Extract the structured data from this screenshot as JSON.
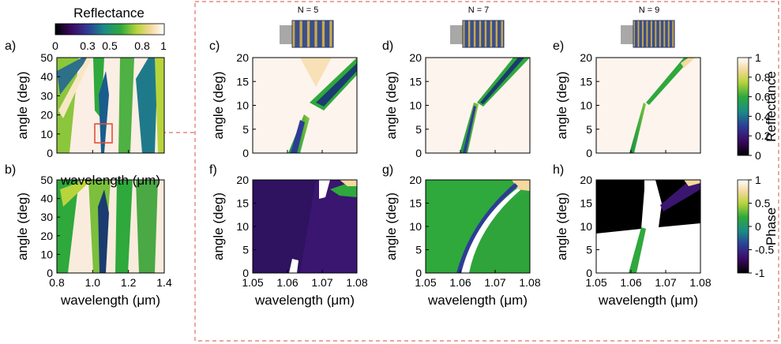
{
  "figure": {
    "colorbar_top": {
      "title": "Reflectance",
      "ticks": [
        "0",
        "0.3",
        "0.5",
        "0.8",
        "1"
      ],
      "tick_values": [
        0,
        0.3,
        0.5,
        0.8,
        1
      ]
    },
    "colorbar_right_reflectance": {
      "label": "Reflectance",
      "ticks": [
        "1",
        "0.8",
        "0.6",
        "0.4",
        "0.2",
        "0"
      ]
    },
    "colorbar_right_phase": {
      "label": "Phase",
      "ticks": [
        "1",
        "0.5",
        "0",
        "-0.5",
        "-1"
      ]
    },
    "structures": [
      {
        "label": "N = 5",
        "periods": 5
      },
      {
        "label": "N = 7",
        "periods": 7
      },
      {
        "label": "N = 9",
        "periods": 9
      }
    ],
    "colors": {
      "inset_box": "#e05040",
      "frame_dashed": "#e07060",
      "structure_dark": "#3b4f8c",
      "structure_light": "#c9a94a",
      "substrate": "#a8a8a8"
    },
    "colormap_stops": [
      "#000000",
      "#3b0a63",
      "#2e3c96",
      "#1a8c86",
      "#2fa83c",
      "#b8d43c",
      "#f5d9a0",
      "#ffffff"
    ]
  },
  "chart_data": [
    {
      "type": "heatmap",
      "panel": "a)",
      "quantity": "Reflectance",
      "xlabel": "wavelength (μm)",
      "ylabel": "angle (deg)",
      "xlim": [
        0.8,
        1.4
      ],
      "ylim": [
        0,
        50
      ],
      "xticks": [
        0.8,
        1.0,
        1.2,
        1.4
      ],
      "xtick_labels": [
        "",
        "",
        "",
        ""
      ],
      "yticks": [
        0,
        10,
        20,
        30,
        40,
        50
      ],
      "ytick_labels": [
        "0",
        "10",
        "20",
        "30",
        "40",
        "50"
      ],
      "inset_region": {
        "xlim": [
          1.05,
          1.08
        ],
        "ylim": [
          5,
          15
        ]
      }
    },
    {
      "type": "heatmap",
      "panel": "b)",
      "quantity": "Reflectance",
      "xlabel": "wavelength (μm)",
      "ylabel": "angle (deg)",
      "xlim": [
        0.8,
        1.4
      ],
      "ylim": [
        0,
        50
      ],
      "xticks": [
        0.8,
        1.0,
        1.2,
        1.4
      ],
      "xtick_labels": [
        "0.8",
        "1.0",
        "1.2",
        "1.4"
      ],
      "yticks": [
        0,
        10,
        20,
        30,
        40,
        50
      ],
      "ytick_labels": [
        "0",
        "10",
        "20",
        "30",
        "40",
        "50"
      ]
    },
    {
      "type": "heatmap",
      "panel": "c)",
      "quantity": "Reflectance",
      "structure": "N = 5",
      "ylabel": "angle (deg)",
      "xlim": [
        1.05,
        1.08
      ],
      "ylim": [
        0,
        20
      ],
      "xticks": [
        1.05,
        1.06,
        1.07,
        1.08
      ],
      "xtick_labels": [
        "",
        "",
        "",
        ""
      ],
      "yticks": [
        0,
        5,
        10,
        15,
        20
      ],
      "ytick_labels": [
        "0",
        "5",
        "10",
        "15",
        "20"
      ]
    },
    {
      "type": "heatmap",
      "panel": "d)",
      "quantity": "Reflectance",
      "structure": "N = 7",
      "ylabel": "angle (deg)",
      "xlim": [
        1.05,
        1.08
      ],
      "ylim": [
        0,
        20
      ],
      "xticks": [
        1.05,
        1.06,
        1.07,
        1.08
      ],
      "xtick_labels": [
        "",
        "",
        "",
        ""
      ],
      "yticks": [
        0,
        5,
        10,
        15,
        20
      ],
      "ytick_labels": [
        "0",
        "5",
        "10",
        "15",
        "20"
      ]
    },
    {
      "type": "heatmap",
      "panel": "e)",
      "quantity": "Reflectance",
      "structure": "N = 9",
      "ylabel": "angle (deg)",
      "xlim": [
        1.05,
        1.08
      ],
      "ylim": [
        0,
        20
      ],
      "xticks": [
        1.05,
        1.06,
        1.07,
        1.08
      ],
      "xtick_labels": [
        "",
        "",
        "",
        ""
      ],
      "yticks": [
        0,
        5,
        10,
        15,
        20
      ],
      "ytick_labels": [
        "0",
        "5",
        "10",
        "15",
        "20"
      ]
    },
    {
      "type": "heatmap",
      "panel": "f)",
      "quantity": "Phase",
      "structure": "N = 5",
      "xlabel": "wavelength (μm)",
      "ylabel": "angle (deg)",
      "xlim": [
        1.05,
        1.08
      ],
      "ylim": [
        0,
        20
      ],
      "xticks": [
        1.05,
        1.06,
        1.07,
        1.08
      ],
      "xtick_labels": [
        "1.05",
        "1.06",
        "1.07",
        "1.08"
      ],
      "yticks": [
        0,
        5,
        10,
        15,
        20
      ],
      "ytick_labels": [
        "0",
        "5",
        "10",
        "15",
        "20"
      ]
    },
    {
      "type": "heatmap",
      "panel": "g)",
      "quantity": "Phase",
      "structure": "N = 7",
      "xlabel": "wavelength (μm)",
      "ylabel": "angle (deg)",
      "xlim": [
        1.05,
        1.08
      ],
      "ylim": [
        0,
        20
      ],
      "xticks": [
        1.05,
        1.06,
        1.07,
        1.08
      ],
      "xtick_labels": [
        "1.05",
        "1.06",
        "1.07",
        "1.08"
      ],
      "yticks": [
        0,
        5,
        10,
        15,
        20
      ],
      "ytick_labels": [
        "0",
        "5",
        "10",
        "15",
        "20"
      ]
    },
    {
      "type": "heatmap",
      "panel": "h)",
      "quantity": "Phase",
      "structure": "N = 9",
      "xlabel": "wavelength (μm)",
      "ylabel": "angle (deg)",
      "xlim": [
        1.05,
        1.08
      ],
      "ylim": [
        0,
        20
      ],
      "xticks": [
        1.05,
        1.06,
        1.07,
        1.08
      ],
      "xtick_labels": [
        "1.05",
        "1.06",
        "1.07",
        "1.08"
      ],
      "yticks": [
        0,
        5,
        10,
        15,
        20
      ],
      "ytick_labels": [
        "0",
        "5",
        "10",
        "15",
        "20"
      ]
    }
  ]
}
